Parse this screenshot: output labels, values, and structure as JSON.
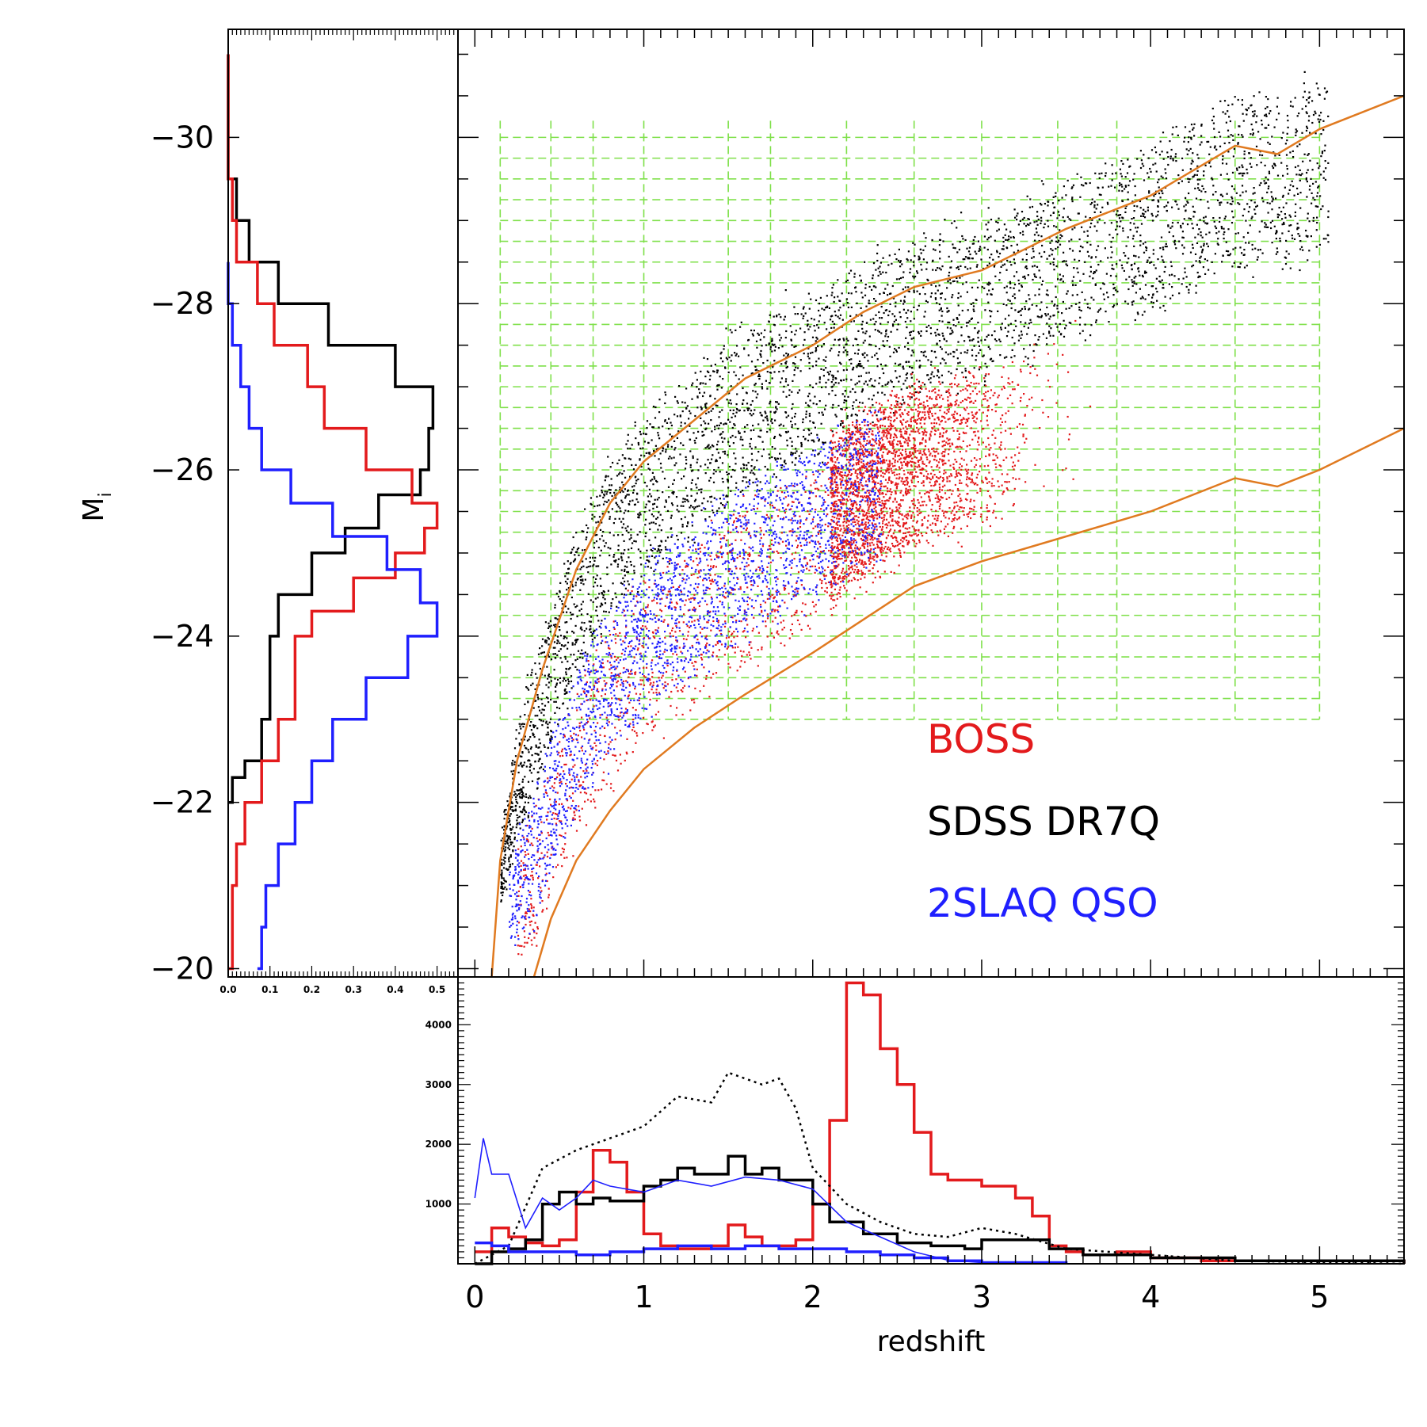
{
  "chart_data": [
    {
      "type": "scatter",
      "xlabel": "redshift",
      "ylabel": "M",
      "ylabel_subscript": "i",
      "xlim": [
        -0.1,
        5.5
      ],
      "ylim": [
        -19.9,
        -31.3
      ],
      "x_ticks": [
        "0",
        "1",
        "2",
        "3",
        "4",
        "5"
      ],
      "y_ticks": [
        "-20",
        "-22",
        "-24",
        "-26",
        "-28",
        "-30"
      ],
      "series": [
        {
          "name": "BOSS",
          "color": "#e31a1c"
        },
        {
          "name": "SDSS DR7Q",
          "color": "#000000"
        },
        {
          "name": "2SLAQ QSO",
          "color": "#1f1fff"
        }
      ],
      "grid": {
        "color": "#7fe04a",
        "style": "dashed",
        "x_edges": [
          0.15,
          0.45,
          0.7,
          1.0,
          1.5,
          1.75,
          2.2,
          2.6,
          3.0,
          3.45,
          3.8,
          4.5,
          5.0
        ],
        "y_range": [
          -23.0,
          -30.2
        ],
        "y_step": 0.25
      },
      "limit_curves": {
        "color": "#e07a20",
        "upper": [
          [
            0.1,
            -19.9
          ],
          [
            0.15,
            -21.3
          ],
          [
            0.25,
            -22.5
          ],
          [
            0.4,
            -23.6
          ],
          [
            0.6,
            -24.8
          ],
          [
            0.8,
            -25.6
          ],
          [
            1.0,
            -26.1
          ],
          [
            1.3,
            -26.6
          ],
          [
            1.6,
            -27.1
          ],
          [
            2.0,
            -27.5
          ],
          [
            2.3,
            -27.9
          ],
          [
            2.6,
            -28.2
          ],
          [
            3.0,
            -28.4
          ],
          [
            3.5,
            -28.9
          ],
          [
            4.0,
            -29.3
          ],
          [
            4.5,
            -29.9
          ],
          [
            4.75,
            -29.8
          ],
          [
            5.0,
            -30.1
          ],
          [
            5.5,
            -30.5
          ]
        ],
        "lower": [
          [
            0.35,
            -19.9
          ],
          [
            0.45,
            -20.6
          ],
          [
            0.6,
            -21.3
          ],
          [
            0.8,
            -21.9
          ],
          [
            1.0,
            -22.4
          ],
          [
            1.3,
            -22.9
          ],
          [
            1.6,
            -23.3
          ],
          [
            2.0,
            -23.8
          ],
          [
            2.3,
            -24.2
          ],
          [
            2.6,
            -24.6
          ],
          [
            3.0,
            -24.9
          ],
          [
            3.5,
            -25.2
          ],
          [
            4.0,
            -25.5
          ],
          [
            4.5,
            -25.9
          ],
          [
            4.75,
            -25.8
          ],
          [
            5.0,
            -26.0
          ],
          [
            5.5,
            -26.5
          ]
        ]
      }
    },
    {
      "type": "line",
      "orientation": "horizontal",
      "y_axis": "M_i",
      "xlim": [
        0,
        0.55
      ],
      "x_ticks": [
        "0.0",
        "0.1",
        "0.2",
        "0.3",
        "0.4",
        "0.5"
      ],
      "series": [
        {
          "name": "SDSS DR7Q",
          "color": "#000000",
          "points": [
            [
              -31.0,
              0.0
            ],
            [
              -30.0,
              0.0
            ],
            [
              -29.5,
              0.02
            ],
            [
              -29.0,
              0.05
            ],
            [
              -28.5,
              0.12
            ],
            [
              -28.0,
              0.24
            ],
            [
              -27.5,
              0.4
            ],
            [
              -27.0,
              0.49
            ],
            [
              -26.5,
              0.48
            ],
            [
              -26.0,
              0.46
            ],
            [
              -25.7,
              0.36
            ],
            [
              -25.3,
              0.28
            ],
            [
              -25.0,
              0.2
            ],
            [
              -24.5,
              0.12
            ],
            [
              -24.0,
              0.1
            ],
            [
              -23.5,
              0.1
            ],
            [
              -23.0,
              0.08
            ],
            [
              -22.5,
              0.04
            ],
            [
              -22.3,
              0.01
            ],
            [
              -22.0,
              0.0
            ]
          ]
        },
        {
          "name": "BOSS",
          "color": "#e31a1c",
          "points": [
            [
              -31.0,
              0.0
            ],
            [
              -30.5,
              0.0
            ],
            [
              -29.5,
              0.01
            ],
            [
              -29.0,
              0.02
            ],
            [
              -28.5,
              0.07
            ],
            [
              -28.0,
              0.11
            ],
            [
              -27.5,
              0.19
            ],
            [
              -27.0,
              0.23
            ],
            [
              -26.5,
              0.33
            ],
            [
              -26.0,
              0.44
            ],
            [
              -25.6,
              0.5
            ],
            [
              -25.3,
              0.47
            ],
            [
              -25.0,
              0.4
            ],
            [
              -24.7,
              0.3
            ],
            [
              -24.3,
              0.2
            ],
            [
              -24.0,
              0.16
            ],
            [
              -23.5,
              0.16
            ],
            [
              -23.0,
              0.12
            ],
            [
              -22.5,
              0.08
            ],
            [
              -22.0,
              0.04
            ],
            [
              -21.5,
              0.02
            ],
            [
              -21.0,
              0.01
            ],
            [
              -20.0,
              0.0
            ]
          ]
        },
        {
          "name": "2SLAQ QSO",
          "color": "#1f1fff",
          "points": [
            [
              -28.5,
              0.0
            ],
            [
              -28.0,
              0.01
            ],
            [
              -27.5,
              0.03
            ],
            [
              -27.0,
              0.05
            ],
            [
              -26.5,
              0.08
            ],
            [
              -26.0,
              0.15
            ],
            [
              -25.6,
              0.25
            ],
            [
              -25.2,
              0.38
            ],
            [
              -24.8,
              0.46
            ],
            [
              -24.4,
              0.5
            ],
            [
              -24.0,
              0.43
            ],
            [
              -23.5,
              0.33
            ],
            [
              -23.0,
              0.25
            ],
            [
              -22.5,
              0.2
            ],
            [
              -22.0,
              0.16
            ],
            [
              -21.5,
              0.12
            ],
            [
              -21.0,
              0.09
            ],
            [
              -20.5,
              0.08
            ],
            [
              -20.0,
              0.07
            ]
          ]
        }
      ]
    },
    {
      "type": "line",
      "xlim": [
        -0.1,
        5.5
      ],
      "ylim": [
        0,
        4800
      ],
      "x_ticks": [
        "0",
        "1",
        "2",
        "3",
        "4",
        "5"
      ],
      "y_ticks": [
        "1000",
        "2000",
        "3000",
        "4000"
      ],
      "series": [
        {
          "name": "BOSS",
          "color": "#e31a1c",
          "style": "steps",
          "points": [
            [
              0.0,
              200
            ],
            [
              0.1,
              600
            ],
            [
              0.2,
              450
            ],
            [
              0.3,
              350
            ],
            [
              0.4,
              300
            ],
            [
              0.5,
              400
            ],
            [
              0.6,
              1200
            ],
            [
              0.7,
              1900
            ],
            [
              0.8,
              1700
            ],
            [
              0.9,
              1200
            ],
            [
              1.0,
              500
            ],
            [
              1.1,
              300
            ],
            [
              1.2,
              250
            ],
            [
              1.4,
              300
            ],
            [
              1.5,
              650
            ],
            [
              1.6,
              450
            ],
            [
              1.7,
              300
            ],
            [
              1.9,
              400
            ],
            [
              2.0,
              1000
            ],
            [
              2.1,
              2400
            ],
            [
              2.2,
              4700
            ],
            [
              2.3,
              4500
            ],
            [
              2.4,
              3600
            ],
            [
              2.5,
              3000
            ],
            [
              2.6,
              2200
            ],
            [
              2.7,
              1500
            ],
            [
              2.8,
              1400
            ],
            [
              3.0,
              1300
            ],
            [
              3.2,
              1100
            ],
            [
              3.3,
              800
            ],
            [
              3.4,
              300
            ],
            [
              3.5,
              200
            ],
            [
              3.6,
              150
            ],
            [
              3.8,
              200
            ],
            [
              4.0,
              100
            ],
            [
              4.3,
              50
            ],
            [
              5.5,
              0
            ]
          ]
        },
        {
          "name": "SDSS DR7Q",
          "color": "#000000",
          "style": "steps",
          "points": [
            [
              0.0,
              0
            ],
            [
              0.1,
              200
            ],
            [
              0.2,
              250
            ],
            [
              0.3,
              400
            ],
            [
              0.4,
              1000
            ],
            [
              0.5,
              1200
            ],
            [
              0.6,
              1000
            ],
            [
              0.7,
              1100
            ],
            [
              0.8,
              1050
            ],
            [
              1.0,
              1300
            ],
            [
              1.1,
              1400
            ],
            [
              1.2,
              1600
            ],
            [
              1.3,
              1500
            ],
            [
              1.5,
              1800
            ],
            [
              1.6,
              1500
            ],
            [
              1.7,
              1600
            ],
            [
              1.8,
              1400
            ],
            [
              2.0,
              1000
            ],
            [
              2.1,
              700
            ],
            [
              2.3,
              500
            ],
            [
              2.5,
              350
            ],
            [
              2.7,
              300
            ],
            [
              2.9,
              250
            ],
            [
              3.0,
              400
            ],
            [
              3.2,
              400
            ],
            [
              3.4,
              250
            ],
            [
              3.6,
              150
            ],
            [
              3.8,
              150
            ],
            [
              4.0,
              100
            ],
            [
              4.5,
              50
            ],
            [
              5.5,
              0
            ]
          ]
        },
        {
          "name": "SDSS DR7Q",
          "color": "#000000",
          "style": "dotted",
          "points": [
            [
              0.0,
              0
            ],
            [
              0.2,
              300
            ],
            [
              0.4,
              1600
            ],
            [
              0.6,
              1900
            ],
            [
              0.8,
              2100
            ],
            [
              1.0,
              2300
            ],
            [
              1.2,
              2800
            ],
            [
              1.4,
              2700
            ],
            [
              1.5,
              3200
            ],
            [
              1.7,
              3000
            ],
            [
              1.8,
              3100
            ],
            [
              1.9,
              2600
            ],
            [
              2.0,
              1600
            ],
            [
              2.2,
              1000
            ],
            [
              2.4,
              700
            ],
            [
              2.6,
              500
            ],
            [
              2.8,
              450
            ],
            [
              3.0,
              600
            ],
            [
              3.2,
              500
            ],
            [
              3.5,
              250
            ],
            [
              4.0,
              150
            ],
            [
              4.5,
              50
            ],
            [
              5.5,
              0
            ]
          ]
        },
        {
          "name": "2SLAQ QSO",
          "color": "#1f1fff",
          "style": "thin",
          "points": [
            [
              0.0,
              1100
            ],
            [
              0.05,
              2100
            ],
            [
              0.1,
              1500
            ],
            [
              0.2,
              1500
            ],
            [
              0.3,
              600
            ],
            [
              0.4,
              1100
            ],
            [
              0.5,
              900
            ],
            [
              0.6,
              1100
            ],
            [
              0.7,
              1400
            ],
            [
              0.8,
              1300
            ],
            [
              1.0,
              1200
            ],
            [
              1.2,
              1400
            ],
            [
              1.4,
              1300
            ],
            [
              1.6,
              1450
            ],
            [
              1.8,
              1400
            ],
            [
              2.0,
              1250
            ],
            [
              2.2,
              700
            ],
            [
              2.4,
              450
            ],
            [
              2.6,
              200
            ],
            [
              2.8,
              60
            ],
            [
              3.0,
              20
            ],
            [
              3.5,
              0
            ]
          ]
        },
        {
          "name": "2SLAQ QSO",
          "color": "#1f1fff",
          "style": "steps",
          "points": [
            [
              0.0,
              350
            ],
            [
              0.1,
              300
            ],
            [
              0.2,
              200
            ],
            [
              0.4,
              200
            ],
            [
              0.6,
              150
            ],
            [
              0.8,
              200
            ],
            [
              1.0,
              250
            ],
            [
              1.2,
              300
            ],
            [
              1.4,
              250
            ],
            [
              1.6,
              300
            ],
            [
              1.8,
              250
            ],
            [
              2.0,
              250
            ],
            [
              2.2,
              200
            ],
            [
              2.4,
              150
            ],
            [
              2.6,
              100
            ],
            [
              2.8,
              50
            ],
            [
              3.0,
              20
            ],
            [
              3.5,
              0
            ]
          ]
        }
      ]
    }
  ]
}
